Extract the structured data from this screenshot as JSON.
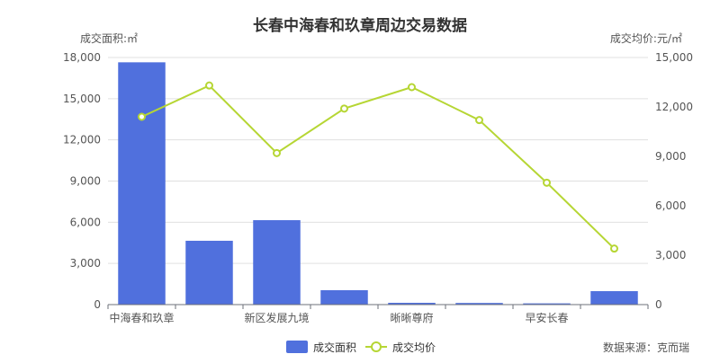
{
  "chart_data": {
    "type": "bar",
    "title": "长春中海春和玖章周边交易数据",
    "categories": [
      "中海春和玖章",
      "",
      "新区发展九境",
      "",
      "晰晰尊府",
      "",
      "早安长春",
      ""
    ],
    "y_left": {
      "label": "成交面积:㎡",
      "range": [
        0,
        18000
      ],
      "ticks": [
        "0",
        "3,000",
        "6,000",
        "9,000",
        "12,000",
        "15,000",
        "18,000"
      ]
    },
    "y_right": {
      "label": "成交均价:元/㎡",
      "range": [
        0,
        15000
      ],
      "ticks": [
        "0",
        "3,000",
        "6,000",
        "9,000",
        "12,000",
        "15,000"
      ]
    },
    "series": [
      {
        "name": "成交面积",
        "type": "bar",
        "axis": "left",
        "color": "#5070dd",
        "values": [
          17650,
          4650,
          6150,
          1050,
          130,
          120,
          90,
          980
        ]
      },
      {
        "name": "成交均价",
        "type": "line",
        "axis": "right",
        "color": "#b6d634",
        "values": [
          11400,
          13300,
          9200,
          11900,
          13200,
          11200,
          7400,
          3400
        ]
      }
    ],
    "grid": true,
    "legend": "bottom-center",
    "source": "数据来源：克而瑞"
  }
}
